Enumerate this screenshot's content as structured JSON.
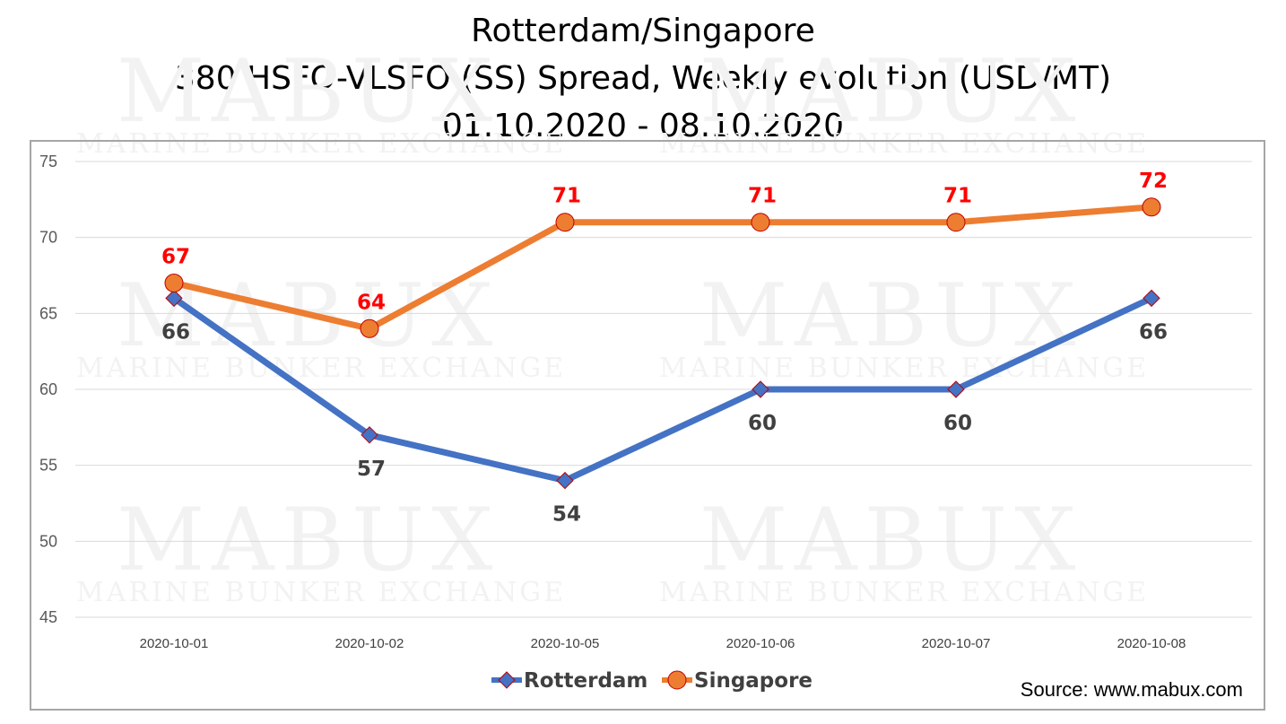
{
  "chart_data": {
    "type": "line",
    "title": "Rotterdam/Singapore",
    "subtitle": "380 HSFO-VLSFO (SS) Spread, Weekly evolution (USD/MT)",
    "date_range": "01.10.2020 - 08.10.2020",
    "categories": [
      "2020-10-01",
      "2020-10-02",
      "2020-10-05",
      "2020-10-06",
      "2020-10-07",
      "2020-10-08"
    ],
    "series": [
      {
        "name": "Rotterdam",
        "values": [
          66,
          57,
          54,
          60,
          60,
          66
        ],
        "color": "#4472c4",
        "marker": "diamond",
        "label_color": "#404040",
        "label_position": "below"
      },
      {
        "name": "Singapore",
        "values": [
          67,
          64,
          71,
          71,
          71,
          72
        ],
        "color": "#ed7d31",
        "marker": "circle",
        "label_color": "#ff0000",
        "label_position": "above"
      }
    ],
    "ylim": [
      45,
      75
    ],
    "yticks": [
      45,
      50,
      55,
      60,
      65,
      70,
      75
    ],
    "grid": true,
    "legend": "bottom",
    "xlabel": "",
    "ylabel": ""
  },
  "watermark": {
    "brand": "MABUX",
    "tagline": "MARINE BUNKER EXCHANGE"
  },
  "source": "Source: www.mabux.com"
}
